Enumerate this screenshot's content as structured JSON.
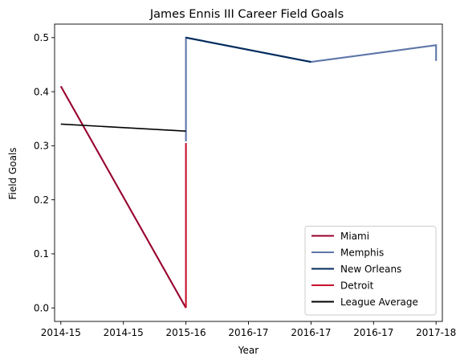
{
  "chart_data": {
    "type": "line",
    "title": "James Ennis III Career Field Goals",
    "xlabel": "Year",
    "ylabel": "Field Goals",
    "xlim": [
      -0.05,
      3.05
    ],
    "ylim": [
      -0.025,
      0.525
    ],
    "x_ticks": [
      {
        "value": 0,
        "label": "2014-15"
      },
      {
        "value": 0.5,
        "label": "2014-15"
      },
      {
        "value": 1,
        "label": "2015-16"
      },
      {
        "value": 1.5,
        "label": "2016-17"
      },
      {
        "value": 2,
        "label": "2016-17"
      },
      {
        "value": 2.5,
        "label": "2016-17"
      },
      {
        "value": 3,
        "label": "2017-18"
      }
    ],
    "y_ticks": [
      0.0,
      0.1,
      0.2,
      0.3,
      0.4,
      0.5
    ],
    "y_tick_labels": [
      "0.0",
      "0.1",
      "0.2",
      "0.3",
      "0.4",
      "0.5"
    ],
    "grid": false,
    "legend_position": "lower right",
    "series": [
      {
        "name": "Miami",
        "color": "#98002e",
        "points": [
          [
            0,
            0.41
          ],
          [
            1,
            0.0
          ]
        ]
      },
      {
        "name": "Memphis",
        "color": "#5d76a9",
        "points": [
          [
            1,
            0.308
          ],
          [
            1,
            0.5
          ],
          [
            2,
            0.455
          ],
          [
            3,
            0.486
          ],
          [
            3,
            0.457
          ]
        ]
      },
      {
        "name": "New Orleans",
        "color": "#002b5c",
        "points": [
          [
            1,
            0.5
          ],
          [
            2,
            0.455
          ]
        ]
      },
      {
        "name": "Detroit",
        "color": "#c8102e",
        "points": [
          [
            1,
            0.305
          ],
          [
            1,
            0.0
          ]
        ]
      },
      {
        "name": "League Average",
        "color": "#000000",
        "points": [
          [
            0,
            0.34
          ],
          [
            1,
            0.327
          ]
        ]
      }
    ]
  }
}
